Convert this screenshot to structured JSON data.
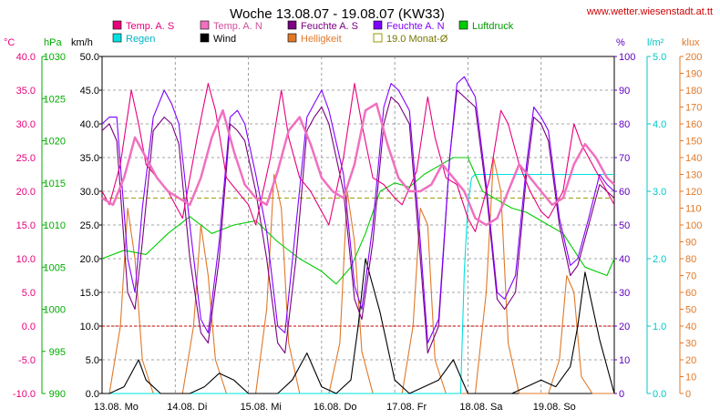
{
  "header": {
    "title": "Woche 13.08.07 - 19.08.07 (KW33)",
    "url": "www.wetter.wiesenstadt.at.tt"
  },
  "colors": {
    "temp_s": "#e8007c",
    "temp_n": "#f070c0",
    "hum_s": "#7a0080",
    "hum_n": "#8000ff",
    "pressure": "#00cc00",
    "rain": "#00e0e0",
    "wind": "#000000",
    "bright": "#e07828",
    "avg": "#999900",
    "axis_temp": "#e8007c",
    "axis_hpa": "#00aa00",
    "axis_kmh": "#000000",
    "axis_pct": "#6000c0",
    "axis_rain": "#00c8c8",
    "axis_klux": "#e07828",
    "zero_line": "#cc0000",
    "grid": "#888888"
  },
  "chart_data": {
    "type": "line",
    "title": "Woche 13.08.07 - 19.08.07 (KW33)",
    "x_unit": "days",
    "x_range": [
      0,
      7
    ],
    "x_ticks": [
      "13.08. Mo",
      "14.08. Di",
      "15.08. Mi",
      "16.08. Do",
      "17.08. Fr",
      "18.08. Sa",
      "19.08. So"
    ],
    "grid": true,
    "legend_placement": "top",
    "legend": [
      {
        "label": "Temp. A. S",
        "series": "temp_s",
        "swatch": "box"
      },
      {
        "label": "Temp. A. N",
        "series": "temp_n",
        "swatch": "box"
      },
      {
        "label": "Feuchte A. S",
        "series": "hum_s",
        "swatch": "box"
      },
      {
        "label": "Feuchte A. N",
        "series": "hum_n",
        "swatch": "box"
      },
      {
        "label": "Luftdruck",
        "series": "pressure",
        "swatch": "box"
      },
      {
        "label": "Regen",
        "series": "rain",
        "swatch": "box"
      },
      {
        "label": "Wind",
        "series": "wind",
        "swatch": "box"
      },
      {
        "label": "Helligkeit",
        "series": "bright",
        "swatch": "box"
      },
      {
        "label": "19.0 Monat-Ø",
        "series": "avg",
        "swatch": "hollow"
      }
    ],
    "axes": {
      "temp": {
        "unit": "°C",
        "range": [
          -10,
          40
        ],
        "ticks": [
          "40.0",
          "35.0",
          "30.0",
          "25.0",
          "20.0",
          "15.0",
          "10.0",
          "5.0",
          "0.0",
          "-5.0",
          "-10.0"
        ]
      },
      "pressure": {
        "unit": "hPa",
        "range": [
          990,
          1030
        ],
        "ticks": [
          "1030",
          "1025",
          "1020",
          "1015",
          "1010",
          "1005",
          "1000",
          "995",
          "990"
        ]
      },
      "wind": {
        "unit": "km/h",
        "range": [
          0,
          50
        ],
        "ticks": [
          "50.0",
          "45.0",
          "40.0",
          "35.0",
          "30.0",
          "25.0",
          "20.0",
          "15.0",
          "10.0",
          "5.0",
          "0.0"
        ]
      },
      "humidity": {
        "unit": "%",
        "range": [
          0,
          100
        ],
        "ticks": [
          "100",
          "90",
          "80",
          "70",
          "60",
          "50",
          "40",
          "30",
          "20",
          "10",
          "0"
        ]
      },
      "rain": {
        "unit": "l/m²",
        "range": [
          0,
          5
        ],
        "ticks": [
          "5.0",
          "4.0",
          "3.0",
          "2.0",
          "1.0",
          "0.0"
        ]
      },
      "brightness": {
        "unit": "klux",
        "range": [
          0,
          200
        ],
        "ticks": [
          "200",
          "190",
          "180",
          "170",
          "160",
          "150",
          "140",
          "130",
          "120",
          "110",
          "100",
          "90",
          "80",
          "70",
          "60",
          "50",
          "40",
          "30",
          "20",
          "10",
          "0"
        ]
      }
    },
    "monthly_average": {
      "axis": "temp",
      "value": 19.0
    },
    "series": {
      "temp_s": {
        "axis": "temp",
        "x": [
          0,
          0.1,
          0.25,
          0.4,
          0.5,
          0.6,
          0.75,
          0.9,
          1.0,
          1.1,
          1.3,
          1.45,
          1.55,
          1.7,
          1.85,
          2.0,
          2.1,
          2.3,
          2.45,
          2.55,
          2.7,
          2.85,
          3.0,
          3.1,
          3.3,
          3.45,
          3.55,
          3.7,
          3.85,
          4.0,
          4.1,
          4.3,
          4.45,
          4.55,
          4.7,
          4.85,
          5.0,
          5.1,
          5.3,
          5.45,
          5.55,
          5.7,
          5.85,
          6.0,
          6.1,
          6.3,
          6.45,
          6.55,
          6.7,
          6.85,
          7.0
        ],
        "y": [
          20,
          18,
          24,
          35,
          30,
          24,
          22,
          20,
          18,
          16,
          28,
          36,
          32,
          22,
          20,
          18,
          15,
          25,
          35,
          28,
          22,
          20,
          17,
          15,
          25,
          36,
          30,
          22,
          21,
          19,
          18,
          23,
          34,
          28,
          22,
          21,
          16,
          14,
          22,
          32,
          30,
          24,
          20,
          17,
          16,
          20,
          30,
          27,
          24,
          21,
          18
        ]
      },
      "temp_n": {
        "axis": "temp",
        "x": [
          0,
          0.15,
          0.3,
          0.45,
          0.6,
          0.75,
          0.9,
          1.05,
          1.2,
          1.35,
          1.5,
          1.65,
          1.8,
          1.95,
          2.1,
          2.25,
          2.4,
          2.55,
          2.7,
          2.85,
          3.0,
          3.15,
          3.3,
          3.45,
          3.6,
          3.75,
          3.9,
          4.05,
          4.2,
          4.35,
          4.5,
          4.65,
          4.8,
          4.95,
          5.1,
          5.25,
          5.4,
          5.55,
          5.7,
          5.85,
          6.0,
          6.15,
          6.3,
          6.45,
          6.6,
          6.75,
          6.9,
          7.0
        ],
        "y": [
          19,
          18,
          22,
          28,
          25,
          22,
          20,
          19,
          18,
          22,
          28,
          32,
          26,
          21,
          19,
          18,
          23,
          29,
          31,
          27,
          22,
          20,
          19,
          24,
          32,
          33,
          27,
          22,
          20,
          20,
          21,
          24,
          22,
          20,
          16,
          15,
          16,
          20,
          24,
          22,
          20,
          18,
          19,
          24,
          27,
          25,
          22,
          21
        ]
      },
      "hum_s": {
        "axis": "humidity",
        "x": [
          0,
          0.1,
          0.2,
          0.35,
          0.45,
          0.55,
          0.7,
          0.85,
          0.95,
          1.05,
          1.2,
          1.35,
          1.45,
          1.6,
          1.75,
          1.85,
          1.95,
          2.1,
          2.25,
          2.4,
          2.5,
          2.65,
          2.8,
          2.9,
          3.0,
          3.1,
          3.3,
          3.45,
          3.55,
          3.7,
          3.85,
          3.95,
          4.05,
          4.2,
          4.35,
          4.45,
          4.6,
          4.75,
          4.85,
          4.95,
          5.1,
          5.25,
          5.4,
          5.5,
          5.65,
          5.8,
          5.9,
          6.0,
          6.1,
          6.25,
          6.4,
          6.5,
          6.65,
          6.8,
          6.9,
          7.0
        ],
        "y": [
          78,
          80,
          75,
          30,
          25,
          45,
          78,
          82,
          80,
          74,
          40,
          18,
          15,
          40,
          80,
          78,
          75,
          60,
          40,
          15,
          12,
          40,
          78,
          82,
          85,
          80,
          60,
          28,
          22,
          45,
          80,
          88,
          86,
          80,
          40,
          12,
          20,
          70,
          90,
          88,
          85,
          60,
          28,
          25,
          30,
          65,
          82,
          80,
          75,
          50,
          35,
          38,
          50,
          62,
          60,
          58
        ]
      },
      "hum_n": {
        "axis": "humidity",
        "x": [
          0,
          0.1,
          0.2,
          0.35,
          0.45,
          0.55,
          0.7,
          0.85,
          0.95,
          1.05,
          1.2,
          1.35,
          1.45,
          1.6,
          1.75,
          1.85,
          1.95,
          2.1,
          2.25,
          2.4,
          2.5,
          2.65,
          2.8,
          2.9,
          3.0,
          3.1,
          3.3,
          3.45,
          3.55,
          3.7,
          3.85,
          3.95,
          4.05,
          4.2,
          4.35,
          4.45,
          4.6,
          4.75,
          4.85,
          4.95,
          5.1,
          5.25,
          5.4,
          5.5,
          5.65,
          5.8,
          5.9,
          6.0,
          6.1,
          6.25,
          6.4,
          6.5,
          6.65,
          6.8,
          6.9,
          7.0
        ],
        "y": [
          80,
          82,
          82,
          40,
          30,
          55,
          82,
          90,
          86,
          80,
          50,
          22,
          18,
          45,
          82,
          84,
          80,
          65,
          48,
          20,
          18,
          50,
          82,
          86,
          90,
          84,
          65,
          32,
          25,
          50,
          85,
          92,
          90,
          84,
          45,
          15,
          22,
          70,
          92,
          94,
          88,
          62,
          30,
          28,
          35,
          68,
          85,
          82,
          78,
          52,
          38,
          40,
          52,
          65,
          62,
          60
        ]
      },
      "pressure": {
        "axis": "pressure",
        "x": [
          0,
          0.3,
          0.6,
          0.9,
          1.2,
          1.5,
          1.8,
          2.1,
          2.4,
          2.7,
          3.0,
          3.2,
          3.4,
          3.6,
          3.8,
          4.0,
          4.2,
          4.4,
          4.6,
          4.8,
          5.0,
          5.2,
          5.4,
          5.6,
          5.8,
          6.0,
          6.3,
          6.6,
          6.9,
          7.0
        ],
        "y": [
          1006,
          1007,
          1006.5,
          1009,
          1011,
          1009,
          1010,
          1010.5,
          1008,
          1006,
          1004.5,
          1003,
          1005,
          1009,
          1014,
          1015,
          1014.5,
          1016,
          1017,
          1018,
          1018,
          1014,
          1013,
          1012,
          1011.5,
          1010.5,
          1009,
          1005,
          1004,
          1006
        ]
      },
      "rain": {
        "axis": "rain",
        "x": [
          0,
          4.9,
          4.95,
          5.0,
          5.05,
          5.1,
          7.0
        ],
        "y": [
          0,
          0,
          1.8,
          2.8,
          3.2,
          3.25,
          3.25
        ]
      },
      "wind": {
        "axis": "wind",
        "x": [
          0,
          0.1,
          0.3,
          0.5,
          0.6,
          0.8,
          1.0,
          1.2,
          1.4,
          1.6,
          1.8,
          2.0,
          2.2,
          2.4,
          2.6,
          2.8,
          3.0,
          3.2,
          3.4,
          3.5,
          3.6,
          3.8,
          4.0,
          4.2,
          4.4,
          4.6,
          4.8,
          5.0,
          5.2,
          5.4,
          5.6,
          5.8,
          6.0,
          6.2,
          6.4,
          6.5,
          6.6,
          6.8,
          7.0
        ],
        "y": [
          0,
          0,
          1,
          5,
          2,
          0,
          0,
          0,
          1,
          3,
          2,
          0,
          0,
          0,
          2,
          6,
          1,
          0,
          2,
          10,
          20,
          12,
          2,
          0,
          1,
          2,
          5,
          0,
          0,
          0,
          0,
          1,
          2,
          1,
          4,
          10,
          18,
          8,
          0
        ]
      },
      "bright": {
        "axis": "brightness",
        "x": [
          0,
          0.1,
          0.25,
          0.35,
          0.45,
          0.55,
          0.7,
          0.85,
          1.0,
          1.1,
          1.25,
          1.35,
          1.45,
          1.55,
          1.7,
          1.85,
          2.0,
          2.1,
          2.25,
          2.35,
          2.45,
          2.55,
          2.7,
          2.85,
          3.0,
          3.1,
          3.25,
          3.35,
          3.45,
          3.55,
          3.7,
          3.85,
          4.0,
          4.1,
          4.25,
          4.35,
          4.45,
          4.55,
          4.7,
          4.85,
          5.0,
          5.1,
          5.25,
          5.35,
          5.45,
          5.55,
          5.7,
          5.85,
          6.0,
          6.1,
          6.25,
          6.35,
          6.45,
          6.55,
          6.7,
          6.85,
          7.0
        ],
        "y": [
          0,
          0,
          40,
          110,
          80,
          20,
          0,
          0,
          0,
          0,
          40,
          100,
          70,
          20,
          0,
          0,
          0,
          0,
          50,
          130,
          110,
          30,
          0,
          0,
          0,
          0,
          30,
          120,
          90,
          25,
          0,
          0,
          0,
          0,
          40,
          110,
          100,
          20,
          0,
          0,
          0,
          0,
          60,
          140,
          120,
          30,
          0,
          0,
          0,
          0,
          20,
          70,
          60,
          10,
          0,
          0,
          0
        ]
      }
    }
  }
}
